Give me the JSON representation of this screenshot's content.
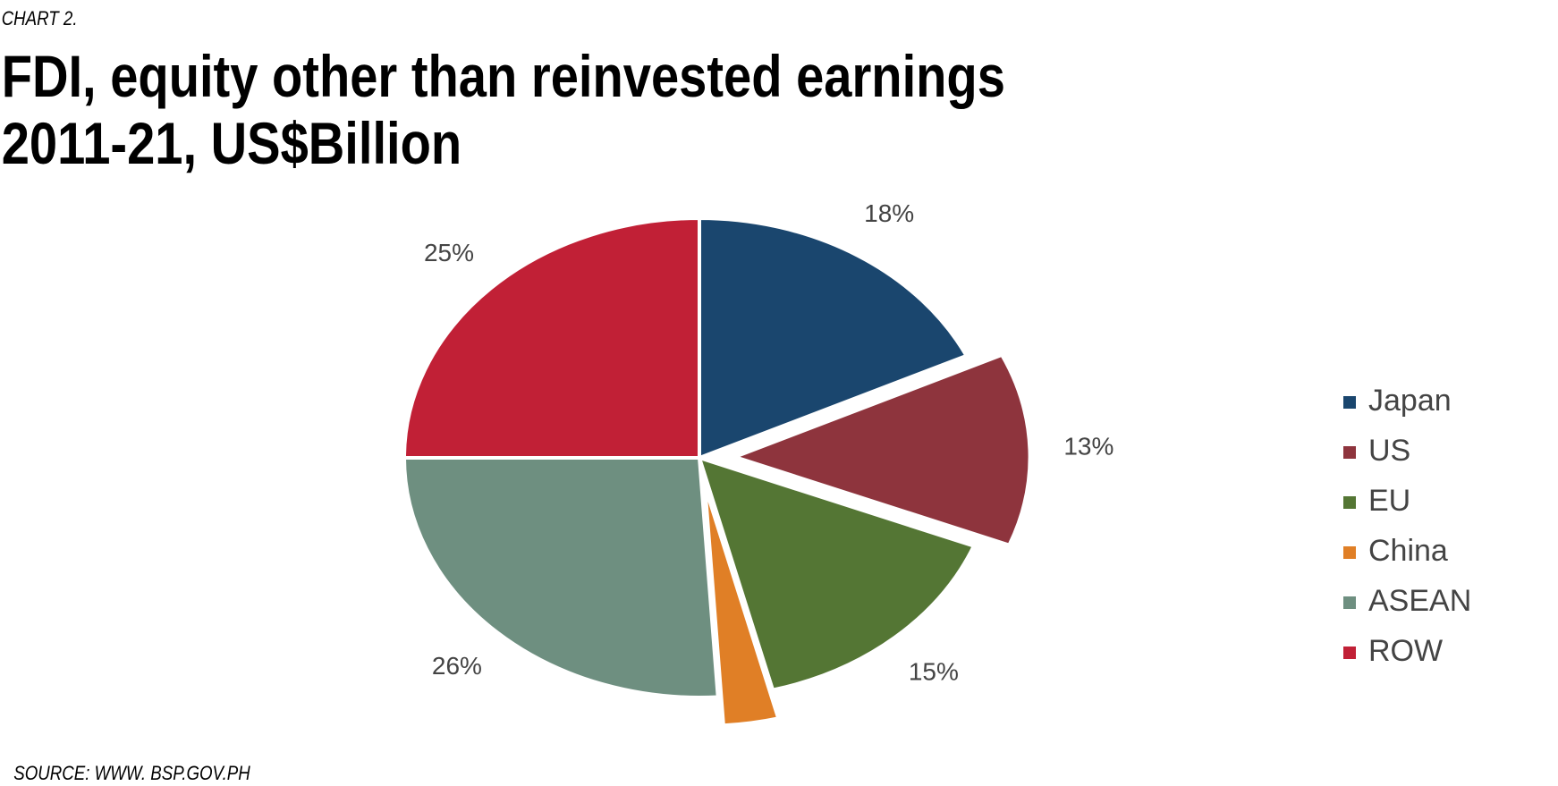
{
  "chart_data": {
    "type": "pie",
    "label": "CHART 2.",
    "title": "FDI, equity other than reinvested earnings",
    "subtitle": "2011-21, US$Billion",
    "source": "SOURCE: WWW. BSP.GOV.PH",
    "categories": [
      "Japan",
      "US",
      "EU",
      "China",
      "ASEAN",
      "ROW"
    ],
    "values": [
      18,
      13,
      15,
      3,
      26,
      25
    ],
    "value_labels": [
      "18%",
      "13%",
      "15%",
      null,
      "26%",
      "25%"
    ],
    "colors": [
      "#1a466e",
      "#8e343d",
      "#547634",
      "#e07f26",
      "#6e8f80",
      "#c12036"
    ],
    "exploded": [
      "US",
      "China"
    ],
    "legend": "right"
  }
}
